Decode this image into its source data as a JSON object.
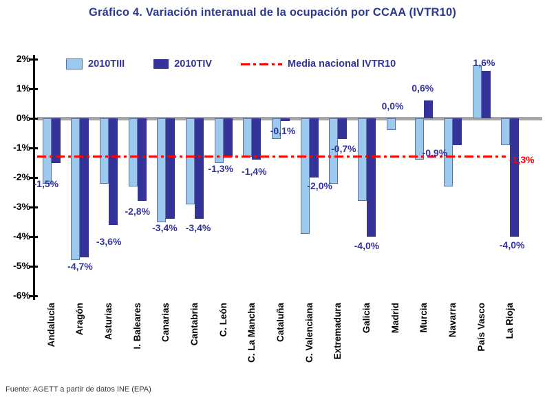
{
  "colors": {
    "title_text": "#2B3990",
    "bar_2010tiii": "#9CC9EE",
    "bar_2010tiv": "#333399",
    "reference": "#FF0000",
    "value_labels": "#3333A0",
    "zero_line": "#A6A6A6"
  },
  "chart_data": {
    "type": "bar",
    "title": "Gráfico 4. Variación interanual de la ocupación por CCAA (IVTR10)",
    "source": "Fuente: AGETT a partir de datos INE (EPA)",
    "legend_position": "top",
    "grid": "zero line only",
    "categories": [
      "Andalucía",
      "Aragón",
      "Asturias",
      "I. Baleares",
      "Canarias",
      "Cantabria",
      "C. León",
      "C. La Mancha",
      "Cataluña",
      "C. Valenciana",
      "Extremadura",
      "Galicia",
      "Madrid",
      "Murcia",
      "Navarra",
      "País Vasco",
      "La Rioja"
    ],
    "series": [
      {
        "name": "2010TIII",
        "color": "#9CC9EE",
        "values": [
          -2.2,
          -4.8,
          -2.2,
          -2.3,
          -3.5,
          -2.9,
          -1.5,
          -1.3,
          -0.7,
          -3.9,
          -2.2,
          -2.8,
          -0.4,
          -1.4,
          -2.3,
          1.8,
          -0.9
        ]
      },
      {
        "name": "2010TIV",
        "color": "#333399",
        "values": [
          -1.5,
          -4.7,
          -3.6,
          -2.8,
          -3.4,
          -3.4,
          -1.3,
          -1.4,
          -0.1,
          -2.0,
          -0.7,
          -4.0,
          0.0,
          0.6,
          -0.9,
          1.6,
          -4.0
        ],
        "value_labels": [
          {
            "text": "-1,5%",
            "dx": -8,
            "dy": 22
          },
          {
            "text": "-4,7%",
            "dx": 0,
            "dy": 5
          },
          {
            "text": "-3,6%",
            "dx": 0,
            "dy": 16
          },
          {
            "text": "-2,8%",
            "dx": 0,
            "dy": 7
          },
          {
            "text": "-3,4%",
            "dx": -2,
            "dy": 5
          },
          {
            "text": "-3,4%",
            "dx": 5,
            "dy": 5
          },
          {
            "text": "-1,3%",
            "dx": -4,
            "dy": 9
          },
          {
            "text": "-1,4%",
            "dx": 3,
            "dy": 9
          },
          {
            "text": "-0,1%",
            "dx": 3,
            "dy": 6
          },
          {
            "text": "-2,0%",
            "dx": 15,
            "dy": 4
          },
          {
            "text": "-0,7%",
            "dx": 8,
            "dy": 6
          },
          {
            "text": "-4,0%",
            "dx": 0,
            "dy": 5
          },
          {
            "text": "0,0%",
            "dx": -4,
            "dy": -26
          },
          {
            "text": "0,6%",
            "dx": -2,
            "dy": -26
          },
          {
            "text": "-0,9%",
            "dx": -26,
            "dy": 3
          },
          {
            "text": "1,6%",
            "dx": 4,
            "dy": -20
          },
          {
            "text": "-4,0%",
            "dx": 3,
            "dy": 4
          }
        ]
      }
    ],
    "reference_line": {
      "name": "Media nacional IVTR10",
      "value": -1.3,
      "label": "-1,3%",
      "color": "#FF0000"
    },
    "y_axis": {
      "min": -6,
      "max": 2,
      "ticks": [
        {
          "value": 2,
          "label": "2%"
        },
        {
          "value": 1,
          "label": "1%"
        },
        {
          "value": 0,
          "label": "0%"
        },
        {
          "value": -1,
          "label": "-1%"
        },
        {
          "value": -2,
          "label": "-2%"
        },
        {
          "value": -3,
          "label": "-3%"
        },
        {
          "value": -4,
          "label": "-4%"
        },
        {
          "value": -5,
          "label": "-5%"
        },
        {
          "value": -6,
          "label": "-6%"
        }
      ]
    }
  }
}
